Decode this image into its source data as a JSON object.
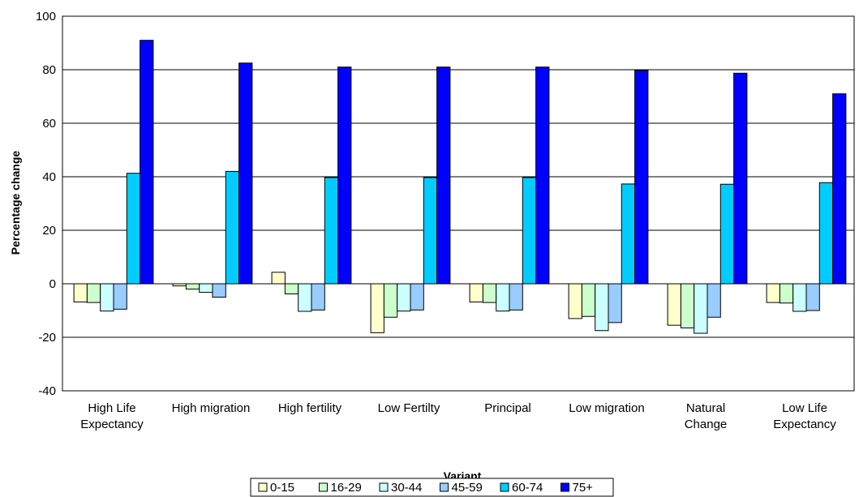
{
  "chart_data": {
    "type": "bar",
    "title": "",
    "xlabel": "Variant",
    "ylabel": "Percentage change",
    "ylim": [
      -40,
      100
    ],
    "yticks": [
      -40,
      -20,
      0,
      20,
      40,
      60,
      80,
      100
    ],
    "grid": true,
    "legend_position": "bottom",
    "categories": [
      [
        "High Life",
        "Expectancy"
      ],
      [
        "High migration"
      ],
      [
        "High fertility"
      ],
      [
        "Low Fertilty"
      ],
      [
        "Principal"
      ],
      [
        "Low migration"
      ],
      [
        "Natural",
        "Change"
      ],
      [
        "Low Life",
        "Expectancy"
      ]
    ],
    "series": [
      {
        "name": "0-15",
        "color": "#FFFFCC",
        "values": [
          -6.8,
          -0.8,
          4.3,
          -18.3,
          -6.8,
          -13.0,
          -15.5,
          -7.0
        ]
      },
      {
        "name": "16-29",
        "color": "#CCFFCC",
        "values": [
          -7.0,
          -2.0,
          -3.8,
          -12.5,
          -7.0,
          -12.2,
          -16.5,
          -7.2
        ]
      },
      {
        "name": "30-44",
        "color": "#CCFFFF",
        "values": [
          -10.2,
          -3.2,
          -10.3,
          -10.2,
          -10.2,
          -17.5,
          -18.5,
          -10.3
        ]
      },
      {
        "name": "45-59",
        "color": "#99CCFF",
        "values": [
          -9.5,
          -5.0,
          -9.8,
          -9.8,
          -9.8,
          -14.5,
          -12.5,
          -10.0
        ]
      },
      {
        "name": "60-74",
        "color": "#00CCFF",
        "values": [
          41.3,
          42.0,
          39.7,
          39.7,
          39.7,
          37.3,
          37.2,
          37.8
        ]
      },
      {
        "name": "75+",
        "color": "#0000FF",
        "values": [
          91.0,
          82.5,
          81.0,
          81.0,
          81.0,
          79.7,
          78.7,
          71.0
        ]
      }
    ]
  }
}
